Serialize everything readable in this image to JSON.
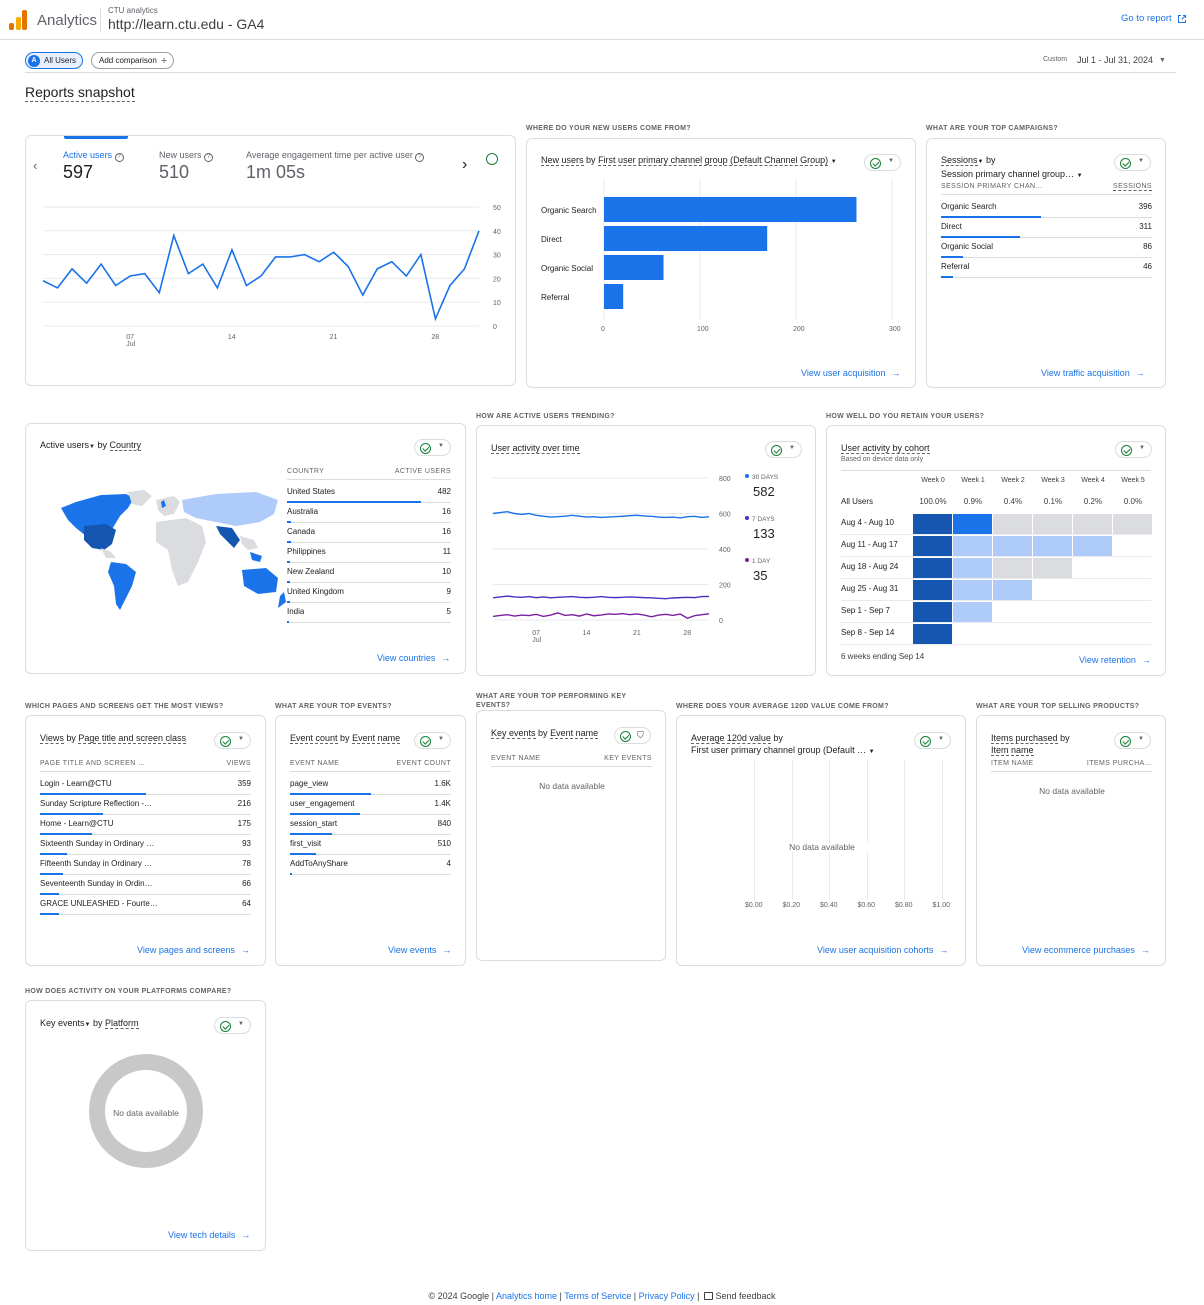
{
  "header": {
    "app_name": "Analytics",
    "property_account": "CTU analytics",
    "property_name": "http://learn.ctu.edu - GA4",
    "go_to_report": "Go to report"
  },
  "toolbar": {
    "segment_letter": "A",
    "segment_label": "All Users",
    "add_comparison": "Add comparison",
    "date_custom": "Custom",
    "date_range": "Jul 1 - Jul 31, 2024"
  },
  "page_title": "Reports snapshot",
  "sections": {
    "new_users_from": "WHERE DO YOUR NEW USERS COME FROM?",
    "top_campaigns": "WHAT ARE YOUR TOP CAMPAIGNS?",
    "active_trending": "HOW ARE ACTIVE USERS TRENDING?",
    "retain_users": "HOW WELL DO YOU RETAIN YOUR USERS?",
    "most_views": "WHICH PAGES AND SCREENS GET THE MOST VIEWS?",
    "top_events": "WHAT ARE YOUR TOP EVENTS?",
    "top_key_events": "WHAT ARE YOUR TOP PERFORMING KEY EVENTS?",
    "avg_value": "WHERE DOES YOUR AVERAGE 120D VALUE COME FROM?",
    "top_products": "WHAT ARE YOUR TOP SELLING PRODUCTS?",
    "platforms": "HOW DOES ACTIVITY ON YOUR PLATFORMS COMPARE?"
  },
  "kpi": {
    "items": [
      {
        "label": "Active users",
        "value": "597"
      },
      {
        "label": "New users",
        "value": "510"
      },
      {
        "label": "Average engagement time per active user",
        "value": "1m 05s"
      }
    ],
    "chart_data": {
      "type": "line",
      "title": "",
      "series": [
        {
          "name": "Active users",
          "values": [
            19,
            16,
            24,
            18,
            26,
            17,
            21,
            22,
            14,
            38,
            22,
            26,
            16,
            32,
            17,
            21,
            29,
            29,
            30,
            27,
            31,
            25,
            13,
            24,
            27,
            21,
            30,
            3,
            17,
            24,
            40
          ]
        }
      ],
      "x": [
        1,
        2,
        3,
        4,
        5,
        6,
        7,
        8,
        9,
        10,
        11,
        12,
        13,
        14,
        15,
        16,
        17,
        18,
        19,
        20,
        21,
        22,
        23,
        24,
        25,
        26,
        27,
        28,
        29,
        30,
        31
      ],
      "ylim": [
        0,
        50
      ],
      "yticks": [
        "50",
        "40",
        "30",
        "20",
        "10",
        "0"
      ],
      "xticks": [
        {
          "day": 7,
          "label": "07",
          "sub": "Jul"
        },
        {
          "day": 14,
          "label": "14",
          "sub": ""
        },
        {
          "day": 21,
          "label": "21",
          "sub": ""
        },
        {
          "day": 28,
          "label": "28",
          "sub": ""
        }
      ]
    }
  },
  "new_users": {
    "title_metric": "New users",
    "title_by": "by",
    "title_dim": "First user primary channel group (Default Channel Group)",
    "link": "View user acquisition",
    "chart_data": {
      "type": "bar",
      "orientation": "horizontal",
      "categories": [
        "Organic Search",
        "Direct",
        "Organic Social",
        "Referral"
      ],
      "values": [
        263,
        170,
        62,
        20
      ],
      "xlim": [
        0,
        300
      ],
      "xticks": [
        "0",
        "100",
        "200",
        "300"
      ]
    }
  },
  "campaigns": {
    "title_metric": "Sessions",
    "title_by": "by",
    "title_dim": "Session primary channel group…",
    "col1": "SESSION PRIMARY CHAN…",
    "col2": "SESSIONS",
    "rows": [
      {
        "name": "Organic Search",
        "value": "396",
        "frac": 1
      },
      {
        "name": "Direct",
        "value": "311",
        "frac": 0.785
      },
      {
        "name": "Organic Social",
        "value": "86",
        "frac": 0.217
      },
      {
        "name": "Referral",
        "value": "46",
        "frac": 0.116
      }
    ],
    "link": "View traffic acquisition"
  },
  "countries": {
    "title_metric": "Active users",
    "title_by": "by",
    "title_dim": "Country",
    "col1": "COUNTRY",
    "col2": "ACTIVE USERS",
    "rows": [
      {
        "name": "United States",
        "value": "482",
        "frac": 1
      },
      {
        "name": "Australia",
        "value": "16",
        "frac": 0.033
      },
      {
        "name": "Canada",
        "value": "16",
        "frac": 0.033
      },
      {
        "name": "Philippines",
        "value": "11",
        "frac": 0.023
      },
      {
        "name": "New Zealand",
        "value": "10",
        "frac": 0.021
      },
      {
        "name": "United Kingdom",
        "value": "9",
        "frac": 0.019
      },
      {
        "name": "India",
        "value": "5",
        "frac": 0.01
      }
    ],
    "link": "View countries"
  },
  "activity": {
    "title": "User activity over time",
    "link": "",
    "legend": [
      {
        "label": "30 DAYS",
        "value": "582",
        "color": "#1a73e8"
      },
      {
        "label": "7 DAYS",
        "value": "133",
        "color": "#4c2ec2"
      },
      {
        "label": "1 DAY",
        "value": "35",
        "color": "#7b1fa2"
      }
    ],
    "chart_data": {
      "type": "line",
      "title": "",
      "ylim": [
        0,
        800
      ],
      "yticks": [
        "800",
        "600",
        "400",
        "200",
        "0"
      ],
      "xticks": [
        {
          "day": 7,
          "label": "07",
          "sub": "Jul"
        },
        {
          "day": 14,
          "label": "14",
          "sub": ""
        },
        {
          "day": 21,
          "label": "21",
          "sub": ""
        },
        {
          "day": 28,
          "label": "28",
          "sub": ""
        }
      ],
      "series": [
        {
          "name": "30 DAYS",
          "color": "#1a73e8",
          "values": [
            600,
            605,
            610,
            600,
            595,
            600,
            590,
            585,
            580,
            582,
            585,
            590,
            585,
            580,
            582,
            578,
            580,
            582,
            585,
            588,
            590,
            586,
            584,
            580,
            578,
            580,
            575,
            582,
            584,
            578,
            582
          ]
        },
        {
          "name": "7 DAYS",
          "color": "#4c2ec2",
          "values": [
            125,
            130,
            135,
            130,
            128,
            132,
            126,
            130,
            125,
            128,
            130,
            132,
            128,
            126,
            128,
            132,
            128,
            126,
            128,
            130,
            128,
            126,
            125,
            122,
            120,
            124,
            126,
            128,
            126,
            132,
            133
          ]
        },
        {
          "name": "1 DAY",
          "color": "#7b1fa2",
          "values": [
            20,
            26,
            30,
            22,
            28,
            25,
            32,
            20,
            28,
            40,
            26,
            30,
            22,
            34,
            24,
            28,
            34,
            32,
            36,
            30,
            34,
            28,
            18,
            28,
            32,
            26,
            34,
            10,
            24,
            30,
            35
          ]
        }
      ]
    }
  },
  "cohort": {
    "title": "User activity by cohort",
    "subtitle": "Based on device data only",
    "weeks": [
      "Week 0",
      "Week 1",
      "Week 2",
      "Week 3",
      "Week 4",
      "Week 5"
    ],
    "all_label": "All Users",
    "all_values": [
      "100.0%",
      "0.9%",
      "0.4%",
      "0.1%",
      "0.2%",
      "0.0%"
    ],
    "rows": [
      {
        "label": "Aug 4 - Aug 10",
        "cells": [
          3,
          2,
          0,
          0,
          0,
          0
        ]
      },
      {
        "label": "Aug 11 - Aug 17",
        "cells": [
          3,
          1,
          1,
          1,
          1
        ]
      },
      {
        "label": "Aug 18 - Aug 24",
        "cells": [
          3,
          1,
          0,
          0
        ]
      },
      {
        "label": "Aug 25 - Aug 31",
        "cells": [
          3,
          1,
          1
        ]
      },
      {
        "label": "Sep 1 - Sep 7",
        "cells": [
          3,
          1
        ]
      },
      {
        "label": "Sep 8 - Sep 14",
        "cells": [
          3
        ]
      }
    ],
    "footer": "6 weeks ending Sep 14",
    "link": "View retention"
  },
  "pages": {
    "title_metric": "Views",
    "title_by": "by",
    "title_dim": "Page title and screen class",
    "col1": "PAGE TITLE AND SCREEN …",
    "col2": "VIEWS",
    "rows": [
      {
        "name": "Login - Learn@CTU",
        "value": "359",
        "frac": 1
      },
      {
        "name": "Sunday Scripture Reflection -…",
        "value": "216",
        "frac": 0.6
      },
      {
        "name": "Home - Learn@CTU",
        "value": "175",
        "frac": 0.49
      },
      {
        "name": "Sixteenth Sunday in Ordinary …",
        "value": "93",
        "frac": 0.26
      },
      {
        "name": "Fifteenth Sunday in Ordinary …",
        "value": "78",
        "frac": 0.22
      },
      {
        "name": "Seventeenth Sunday in Ordin…",
        "value": "66",
        "frac": 0.18
      },
      {
        "name": "GRACE UNLEASHED - Fourte…",
        "value": "64",
        "frac": 0.18
      }
    ],
    "link": "View pages and screens"
  },
  "events": {
    "title_metric": "Event count",
    "title_by": "by",
    "title_dim": "Event name",
    "col1": "EVENT NAME",
    "col2": "EVENT COUNT",
    "rows": [
      {
        "name": "page_view",
        "value": "1.6K",
        "frac": 1
      },
      {
        "name": "user_engagement",
        "value": "1.4K",
        "frac": 0.87
      },
      {
        "name": "session_start",
        "value": "840",
        "frac": 0.52
      },
      {
        "name": "first_visit",
        "value": "510",
        "frac": 0.32
      },
      {
        "name": "AddToAnyShare",
        "value": "4",
        "frac": 0.01
      }
    ],
    "link": "View events"
  },
  "key_events": {
    "title_metric": "Key events",
    "title_by": "by",
    "title_dim": "Event name",
    "col1": "EVENT NAME",
    "col2": "KEY EVENTS",
    "no_data": "No data available"
  },
  "avg_value": {
    "title_line1": "Average 120d value",
    "title_by": "by",
    "title_line2": "First user primary channel group (Default …",
    "no_data": "No data available",
    "xticks": [
      "$0.00",
      "$0.20",
      "$0.40",
      "$0.60",
      "$0.80",
      "$1.00"
    ],
    "link": "View user acquisition cohorts"
  },
  "products": {
    "title_metric": "Items purchased",
    "title_by": "by",
    "title_dim": "Item name",
    "col1": "ITEM NAME",
    "col2": "ITEMS PURCHA…",
    "no_data": "No data available",
    "link": "View ecommerce purchases"
  },
  "platforms": {
    "title_metric": "Key events",
    "title_by": "by",
    "title_dim": "Platform",
    "no_data": "No data available",
    "link": "View tech details"
  },
  "footer": {
    "copyright": "© 2024 Google",
    "sep": " | ",
    "analytics_home": "Analytics home",
    "terms": "Terms of Service",
    "privacy": "Privacy Policy",
    "feedback": "Send feedback"
  },
  "colors": {
    "accent": "#1a73e8",
    "dark": "#1557b0",
    "mid": "#1a73e8",
    "light": "#aecbfa",
    "grey": "#dadce0"
  }
}
